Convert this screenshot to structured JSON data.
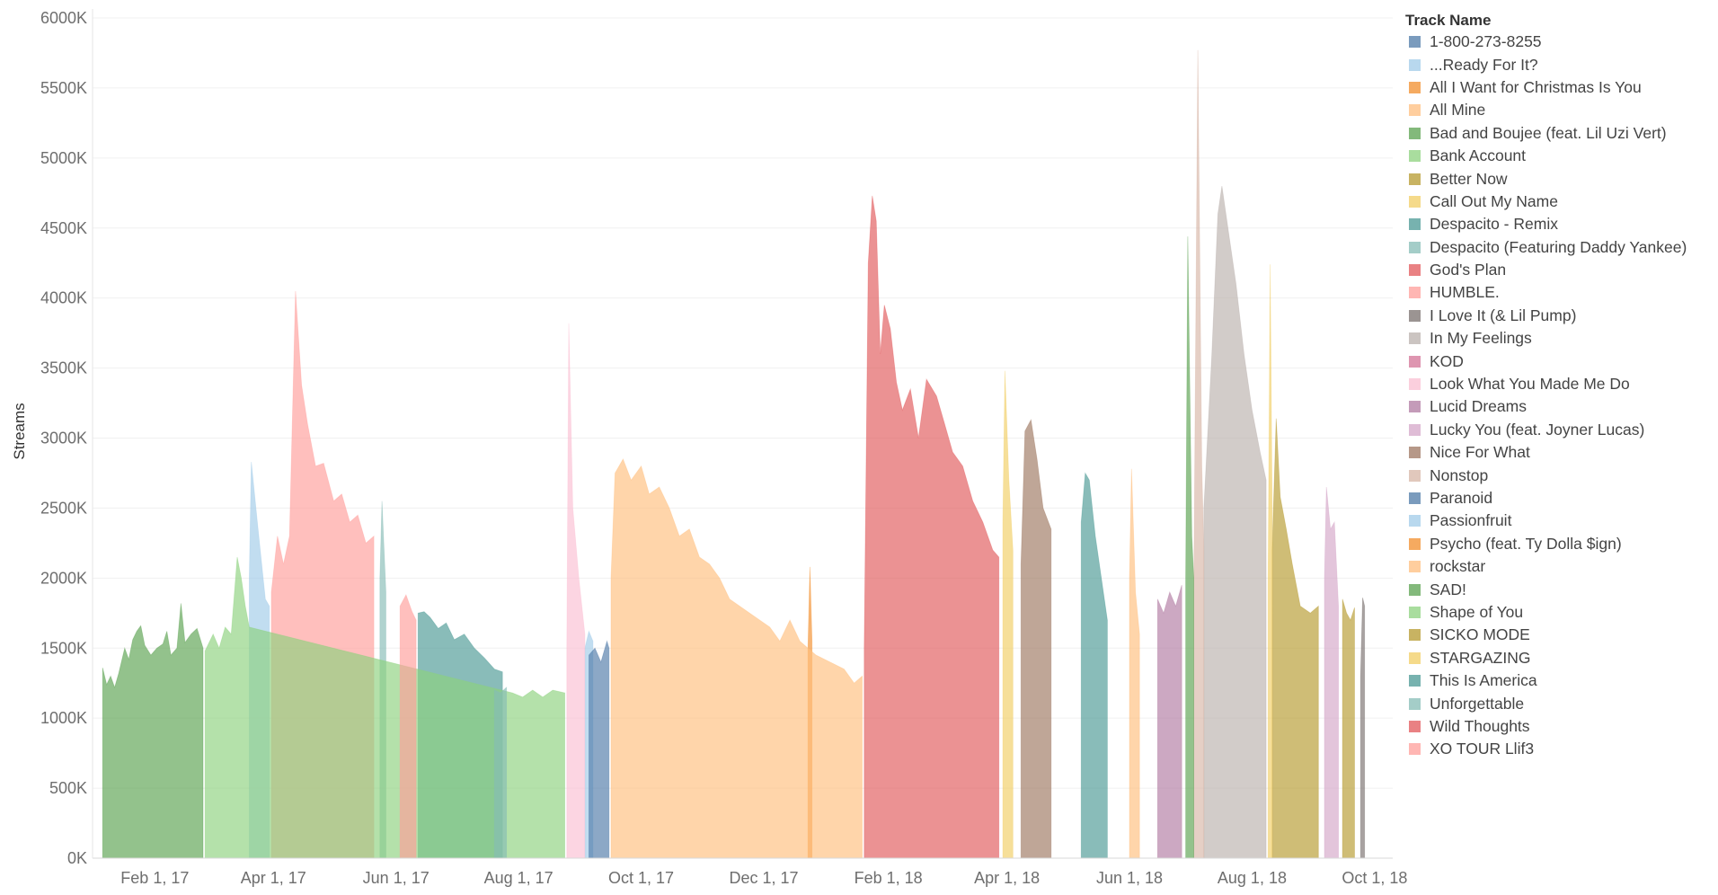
{
  "chart_data": {
    "type": "area",
    "xlabel": "",
    "ylabel": "Streams",
    "x_range": [
      "2017-01-01",
      "2018-10-10"
    ],
    "ylim": [
      0,
      6000000
    ],
    "y_ticks": [
      0,
      500000,
      1000000,
      1500000,
      2000000,
      2500000,
      3000000,
      3500000,
      4000000,
      4500000,
      5000000,
      5500000,
      6000000
    ],
    "y_tick_labels": [
      "0K",
      "500K",
      "1000K",
      "1500K",
      "2000K",
      "2500K",
      "3000K",
      "3500K",
      "4000K",
      "4500K",
      "5000K",
      "5500K",
      "6000K"
    ],
    "x_ticks": [
      "2017-02-01",
      "2017-04-01",
      "2017-06-01",
      "2017-08-01",
      "2017-10-01",
      "2017-12-01",
      "2018-02-01",
      "2018-04-01",
      "2018-06-01",
      "2018-08-01",
      "2018-10-01"
    ],
    "x_tick_labels": [
      "Feb 1, 17",
      "Apr 1, 17",
      "Jun 1, 17",
      "Aug 1, 17",
      "Oct 1, 17",
      "Dec 1, 17",
      "Feb 1, 18",
      "Apr 1, 18",
      "Jun 1, 18",
      "Aug 1, 18",
      "Oct 1, 18"
    ],
    "grid": "horizontal",
    "legend_position": "right",
    "legend_title": "Track Name",
    "series": [
      {
        "name": "1-800-273-8255",
        "color": "#4e79a7",
        "points": []
      },
      {
        "name": "...Ready For It?",
        "color": "#a0cbe8",
        "points": [
          [
            "2017-09-03",
            1500000
          ],
          [
            "2017-09-05",
            1620000
          ],
          [
            "2017-09-07",
            1550000
          ]
        ]
      },
      {
        "name": "All I Want for Christmas Is You",
        "color": "#f28e2b",
        "points": [
          [
            "2017-12-23",
            1500000
          ],
          [
            "2017-12-24",
            2080000
          ],
          [
            "2017-12-25",
            1550000
          ]
        ]
      },
      {
        "name": "All Mine",
        "color": "#ffbe7d",
        "points": [
          [
            "2018-06-01",
            2000000
          ],
          [
            "2018-06-02",
            2780000
          ],
          [
            "2018-06-04",
            1900000
          ],
          [
            "2018-06-06",
            1600000
          ]
        ]
      },
      {
        "name": "Bad and Boujee (feat. Lil Uzi Vert)",
        "color": "#59a14f",
        "points": [
          [
            "2017-01-06",
            1360000
          ],
          [
            "2017-01-08",
            1240000
          ],
          [
            "2017-01-10",
            1300000
          ],
          [
            "2017-01-12",
            1220000
          ],
          [
            "2017-01-14",
            1320000
          ],
          [
            "2017-01-17",
            1500000
          ],
          [
            "2017-01-19",
            1420000
          ],
          [
            "2017-01-21",
            1560000
          ],
          [
            "2017-01-23",
            1620000
          ],
          [
            "2017-01-25",
            1660000
          ],
          [
            "2017-01-27",
            1520000
          ],
          [
            "2017-01-30",
            1450000
          ],
          [
            "2017-02-02",
            1500000
          ],
          [
            "2017-02-05",
            1530000
          ],
          [
            "2017-02-07",
            1620000
          ],
          [
            "2017-02-09",
            1450000
          ],
          [
            "2017-02-12",
            1500000
          ],
          [
            "2017-02-14",
            1820000
          ],
          [
            "2017-02-16",
            1540000
          ],
          [
            "2017-02-19",
            1600000
          ],
          [
            "2017-02-22",
            1640000
          ],
          [
            "2017-02-25",
            1500000
          ]
        ]
      },
      {
        "name": "Bank Account",
        "color": "#8cd17d",
        "points": []
      },
      {
        "name": "Better Now",
        "color": "#b6992d",
        "points": [
          [
            "2018-09-15",
            1850000
          ],
          [
            "2018-09-17",
            1750000
          ],
          [
            "2018-09-19",
            1700000
          ],
          [
            "2018-09-21",
            1790000
          ]
        ]
      },
      {
        "name": "Call Out My Name",
        "color": "#f1ce63",
        "points": [
          [
            "2018-03-30",
            2400000
          ],
          [
            "2018-03-31",
            3480000
          ],
          [
            "2018-04-02",
            2700000
          ],
          [
            "2018-04-04",
            2200000
          ]
        ]
      },
      {
        "name": "Despacito - Remix",
        "color": "#499894",
        "points": [
          [
            "2017-06-12",
            1750000
          ],
          [
            "2017-06-15",
            1760000
          ],
          [
            "2017-06-18",
            1720000
          ],
          [
            "2017-06-22",
            1640000
          ],
          [
            "2017-06-26",
            1680000
          ],
          [
            "2017-06-30",
            1560000
          ],
          [
            "2017-07-05",
            1600000
          ],
          [
            "2017-07-10",
            1500000
          ],
          [
            "2017-07-15",
            1430000
          ],
          [
            "2017-07-20",
            1350000
          ],
          [
            "2017-07-24",
            1330000
          ]
        ]
      },
      {
        "name": "Despacito (Featuring Daddy Yankee)",
        "color": "#86bcb6",
        "points": [
          [
            "2017-05-24",
            2000000
          ],
          [
            "2017-05-25",
            2550000
          ],
          [
            "2017-05-27",
            1900000
          ]
        ]
      },
      {
        "name": "God's Plan",
        "color": "#e15759",
        "points": [
          [
            "2018-01-20",
            1500000
          ],
          [
            "2018-01-22",
            4250000
          ],
          [
            "2018-01-24",
            4730000
          ],
          [
            "2018-01-26",
            4550000
          ],
          [
            "2018-01-28",
            3600000
          ],
          [
            "2018-01-30",
            3950000
          ],
          [
            "2018-02-02",
            3780000
          ],
          [
            "2018-02-05",
            3400000
          ],
          [
            "2018-02-08",
            3200000
          ],
          [
            "2018-02-12",
            3350000
          ],
          [
            "2018-02-16",
            3000000
          ],
          [
            "2018-02-20",
            3420000
          ],
          [
            "2018-02-25",
            3300000
          ],
          [
            "2018-03-01",
            3100000
          ],
          [
            "2018-03-05",
            2900000
          ],
          [
            "2018-03-10",
            2800000
          ],
          [
            "2018-03-15",
            2550000
          ],
          [
            "2018-03-20",
            2400000
          ],
          [
            "2018-03-25",
            2200000
          ],
          [
            "2018-03-28",
            2150000
          ]
        ]
      },
      {
        "name": "HUMBLE.",
        "color": "#ff9d9a",
        "points": [
          [
            "2017-03-31",
            1900000
          ],
          [
            "2017-04-03",
            2300000
          ],
          [
            "2017-04-06",
            2100000
          ],
          [
            "2017-04-09",
            2300000
          ],
          [
            "2017-04-12",
            4050000
          ],
          [
            "2017-04-15",
            3380000
          ],
          [
            "2017-04-18",
            3100000
          ],
          [
            "2017-04-22",
            2800000
          ],
          [
            "2017-04-26",
            2820000
          ],
          [
            "2017-05-01",
            2550000
          ],
          [
            "2017-05-05",
            2600000
          ],
          [
            "2017-05-09",
            2400000
          ],
          [
            "2017-05-13",
            2450000
          ],
          [
            "2017-05-17",
            2250000
          ],
          [
            "2017-05-21",
            2300000
          ]
        ]
      },
      {
        "name": "I Love It (& Lil Pump)",
        "color": "#79706e",
        "points": [
          [
            "2018-09-24",
            1300000
          ],
          [
            "2018-09-25",
            1860000
          ],
          [
            "2018-09-26",
            1800000
          ]
        ]
      },
      {
        "name": "In My Feelings",
        "color": "#bab0ac",
        "points": [
          [
            "2018-07-08",
            2500000
          ],
          [
            "2018-07-12",
            3600000
          ],
          [
            "2018-07-15",
            4600000
          ],
          [
            "2018-07-17",
            4800000
          ],
          [
            "2018-07-20",
            4500000
          ],
          [
            "2018-07-24",
            4100000
          ],
          [
            "2018-07-28",
            3600000
          ],
          [
            "2018-08-01",
            3200000
          ],
          [
            "2018-08-05",
            2900000
          ],
          [
            "2018-08-08",
            2700000
          ]
        ]
      },
      {
        "name": "KOD",
        "color": "#d37295",
        "points": []
      },
      {
        "name": "Look What You Made Me Do",
        "color": "#fabfd2",
        "points": [
          [
            "2017-08-25",
            1500000
          ],
          [
            "2017-08-26",
            3820000
          ],
          [
            "2017-08-28",
            2500000
          ],
          [
            "2017-08-31",
            2000000
          ],
          [
            "2017-09-03",
            1600000
          ]
        ]
      },
      {
        "name": "Lucid Dreams",
        "color": "#b07aa1",
        "points": [
          [
            "2018-06-15",
            1850000
          ],
          [
            "2018-06-18",
            1750000
          ],
          [
            "2018-06-21",
            1900000
          ],
          [
            "2018-06-24",
            1800000
          ],
          [
            "2018-06-27",
            1950000
          ]
        ]
      },
      {
        "name": "Lucky You (feat. Joyner Lucas)",
        "color": "#d4a6c8",
        "points": [
          [
            "2018-09-06",
            2000000
          ],
          [
            "2018-09-07",
            2650000
          ],
          [
            "2018-09-09",
            2350000
          ],
          [
            "2018-09-11",
            2400000
          ],
          [
            "2018-09-13",
            1800000
          ]
        ]
      },
      {
        "name": "Nice For What",
        "color": "#9d7660",
        "points": [
          [
            "2018-04-08",
            2100000
          ],
          [
            "2018-04-10",
            3050000
          ],
          [
            "2018-04-13",
            3130000
          ],
          [
            "2018-04-16",
            2850000
          ],
          [
            "2018-04-19",
            2500000
          ],
          [
            "2018-04-23",
            2350000
          ]
        ]
      },
      {
        "name": "Nonstop",
        "color": "#d7b5a6",
        "points": [
          [
            "2018-07-03",
            1900000
          ],
          [
            "2018-07-05",
            5770000
          ],
          [
            "2018-07-07",
            2800000
          ],
          [
            "2018-07-08",
            2200000
          ]
        ]
      },
      {
        "name": "Paranoid",
        "color": "#4e79a7",
        "points": [
          [
            "2017-09-05",
            1450000
          ],
          [
            "2017-09-08",
            1500000
          ],
          [
            "2017-09-11",
            1400000
          ],
          [
            "2017-09-14",
            1550000
          ],
          [
            "2017-09-15",
            1500000
          ]
        ]
      },
      {
        "name": "Passionfruit",
        "color": "#a0cbe8",
        "points": [
          [
            "2017-03-20",
            2000000
          ],
          [
            "2017-03-21",
            2830000
          ],
          [
            "2017-03-24",
            2400000
          ],
          [
            "2017-03-28",
            1850000
          ],
          [
            "2017-03-30",
            1800000
          ]
        ]
      },
      {
        "name": "Psycho (feat. Ty Dolla $ign)",
        "color": "#f28e2b",
        "points": []
      },
      {
        "name": "rockstar",
        "color": "#ffbe7d",
        "points": [
          [
            "2017-09-16",
            2000000
          ],
          [
            "2017-09-18",
            2750000
          ],
          [
            "2017-09-22",
            2850000
          ],
          [
            "2017-09-26",
            2700000
          ],
          [
            "2017-10-01",
            2800000
          ],
          [
            "2017-10-05",
            2600000
          ],
          [
            "2017-10-10",
            2650000
          ],
          [
            "2017-10-15",
            2500000
          ],
          [
            "2017-10-20",
            2300000
          ],
          [
            "2017-10-25",
            2350000
          ],
          [
            "2017-10-30",
            2150000
          ],
          [
            "2017-11-04",
            2100000
          ],
          [
            "2017-11-09",
            2000000
          ],
          [
            "2017-11-14",
            1850000
          ],
          [
            "2017-11-19",
            1800000
          ],
          [
            "2017-11-24",
            1750000
          ],
          [
            "2017-11-29",
            1700000
          ],
          [
            "2017-12-04",
            1650000
          ],
          [
            "2017-12-09",
            1550000
          ],
          [
            "2017-12-14",
            1700000
          ],
          [
            "2017-12-19",
            1550000
          ],
          [
            "2017-12-27",
            1450000
          ],
          [
            "2018-01-03",
            1400000
          ],
          [
            "2018-01-10",
            1350000
          ],
          [
            "2018-01-15",
            1250000
          ],
          [
            "2018-01-19",
            1300000
          ]
        ]
      },
      {
        "name": "SAD!",
        "color": "#59a14f",
        "points": [
          [
            "2018-06-29",
            2000000
          ],
          [
            "2018-06-30",
            4440000
          ],
          [
            "2018-07-02",
            2300000
          ],
          [
            "2018-07-03",
            2000000
          ]
        ]
      },
      {
        "name": "Shape of You",
        "color": "#8cd17d",
        "points": [
          [
            "2017-02-26",
            1480000
          ],
          [
            "2017-03-02",
            1600000
          ],
          [
            "2017-03-05",
            1500000
          ],
          [
            "2017-03-08",
            1650000
          ],
          [
            "2017-03-11",
            1600000
          ],
          [
            "2017-03-14",
            2150000
          ],
          [
            "2017-03-16",
            2000000
          ],
          [
            "2017-03-18",
            1800000
          ],
          [
            "2017-03-20",
            1650000
          ],
          [
            "2017-07-29",
            1180000
          ],
          [
            "2017-08-03",
            1150000
          ],
          [
            "2017-08-08",
            1200000
          ],
          [
            "2017-08-13",
            1150000
          ],
          [
            "2017-08-18",
            1200000
          ],
          [
            "2017-08-24",
            1180000
          ]
        ]
      },
      {
        "name": "SICKO MODE",
        "color": "#b6992d",
        "points": [
          [
            "2018-08-11",
            2200000
          ],
          [
            "2018-08-13",
            3140000
          ],
          [
            "2018-08-15",
            2580000
          ],
          [
            "2018-08-18",
            2350000
          ],
          [
            "2018-08-21",
            2100000
          ],
          [
            "2018-08-25",
            1800000
          ],
          [
            "2018-08-30",
            1750000
          ],
          [
            "2018-09-03",
            1800000
          ]
        ]
      },
      {
        "name": "STARGAZING",
        "color": "#f1ce63",
        "points": [
          [
            "2018-08-09",
            2000000
          ],
          [
            "2018-08-10",
            4240000
          ],
          [
            "2018-08-11",
            2500000
          ]
        ]
      },
      {
        "name": "This Is America",
        "color": "#499894",
        "points": [
          [
            "2018-05-08",
            2400000
          ],
          [
            "2018-05-10",
            2750000
          ],
          [
            "2018-05-12",
            2700000
          ],
          [
            "2018-05-15",
            2300000
          ],
          [
            "2018-05-18",
            2000000
          ],
          [
            "2018-05-21",
            1700000
          ]
        ]
      },
      {
        "name": "Unforgettable",
        "color": "#86bcb6",
        "points": [
          [
            "2017-07-20",
            1200000
          ],
          [
            "2017-07-23",
            1180000
          ],
          [
            "2017-07-26",
            1220000
          ]
        ]
      },
      {
        "name": "Wild Thoughts",
        "color": "#e15759",
        "points": []
      },
      {
        "name": "XO TOUR Llif3",
        "color": "#ff9d9a",
        "points": [
          [
            "2017-06-03",
            1800000
          ],
          [
            "2017-06-06",
            1880000
          ],
          [
            "2017-06-09",
            1760000
          ],
          [
            "2017-06-11",
            1700000
          ]
        ]
      }
    ]
  }
}
